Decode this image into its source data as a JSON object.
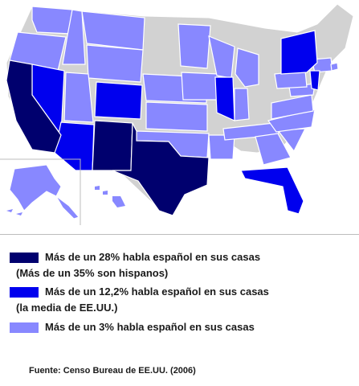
{
  "colors": {
    "dark_navy": "#00006e",
    "blue": "#0000ee",
    "light_periwinkle": "#8888ff",
    "gray": "#d2d2d2",
    "border": "#ffffff"
  },
  "legend": {
    "items": [
      {
        "color": "#00006e",
        "line1": "Más de un 28% habla español en sus casas",
        "line2": "(Más de un 35% son hispanos)"
      },
      {
        "color": "#0000ee",
        "line1": "Más de un 12,2% habla español en sus casas",
        "line2": "(la media de EE.UU.)"
      },
      {
        "color": "#8888ff",
        "line1": "Más de un 3% habla español en sus casas",
        "line2": ""
      }
    ]
  },
  "source": "Fuente: Censo Bureau de EE.UU. (2006)"
}
